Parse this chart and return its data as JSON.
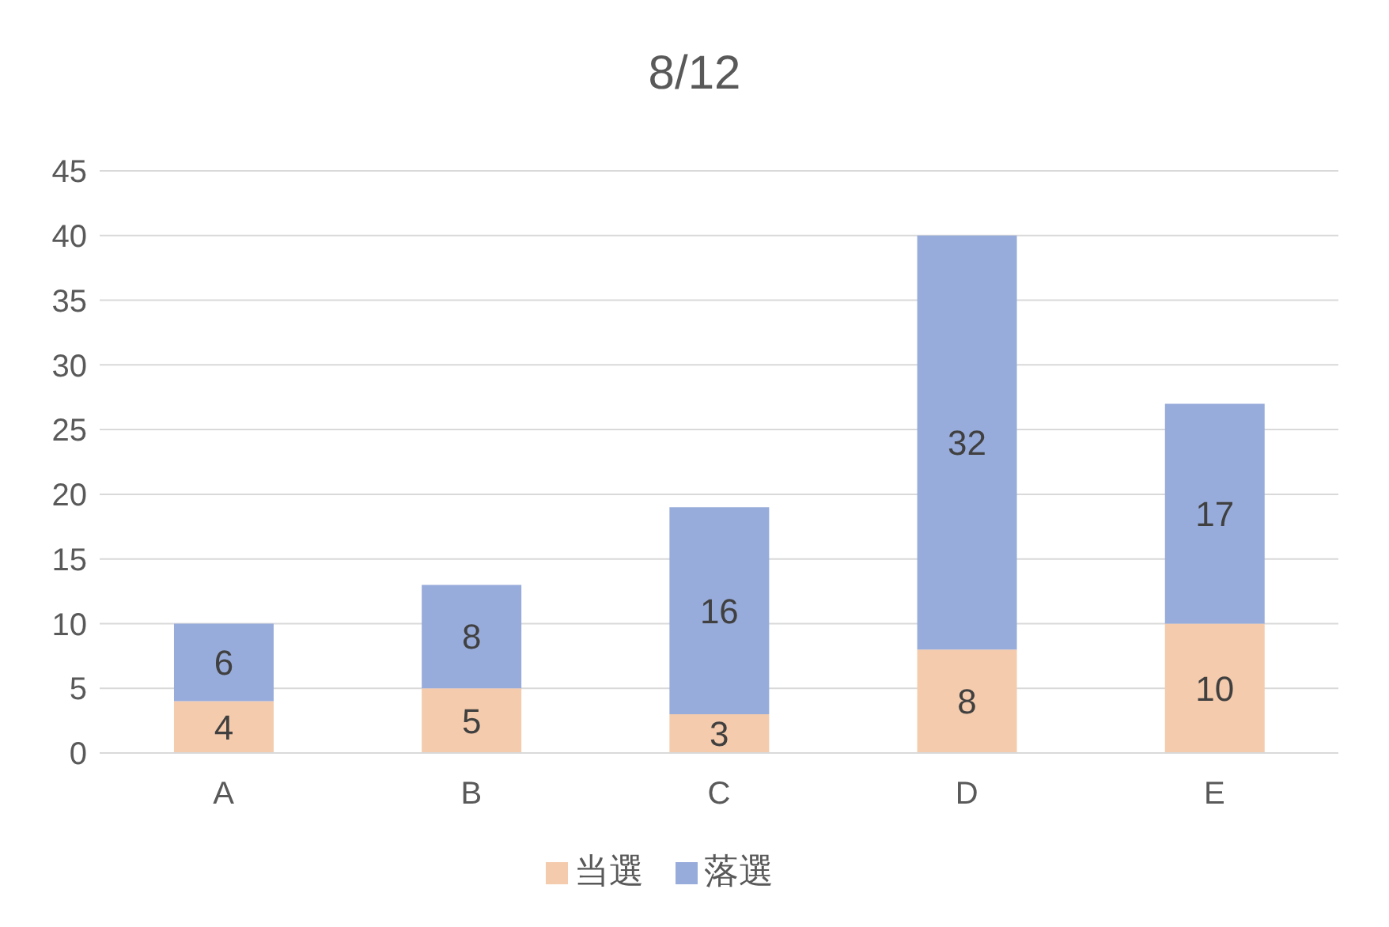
{
  "chart_data": {
    "type": "bar",
    "title": "8/12",
    "categories": [
      "A",
      "B",
      "C",
      "D",
      "E"
    ],
    "stacked": true,
    "data_labels": true,
    "grid": "y",
    "legend": "bottom",
    "ylim": [
      0,
      45
    ],
    "yticks": [
      0,
      5,
      10,
      15,
      20,
      25,
      30,
      35,
      40,
      45
    ],
    "series": [
      {
        "name": "当選",
        "color": "#f4cbac",
        "values": [
          4,
          5,
          3,
          8,
          10
        ]
      },
      {
        "name": "落選",
        "color": "#98acdb",
        "values": [
          6,
          8,
          16,
          32,
          17
        ]
      }
    ]
  }
}
